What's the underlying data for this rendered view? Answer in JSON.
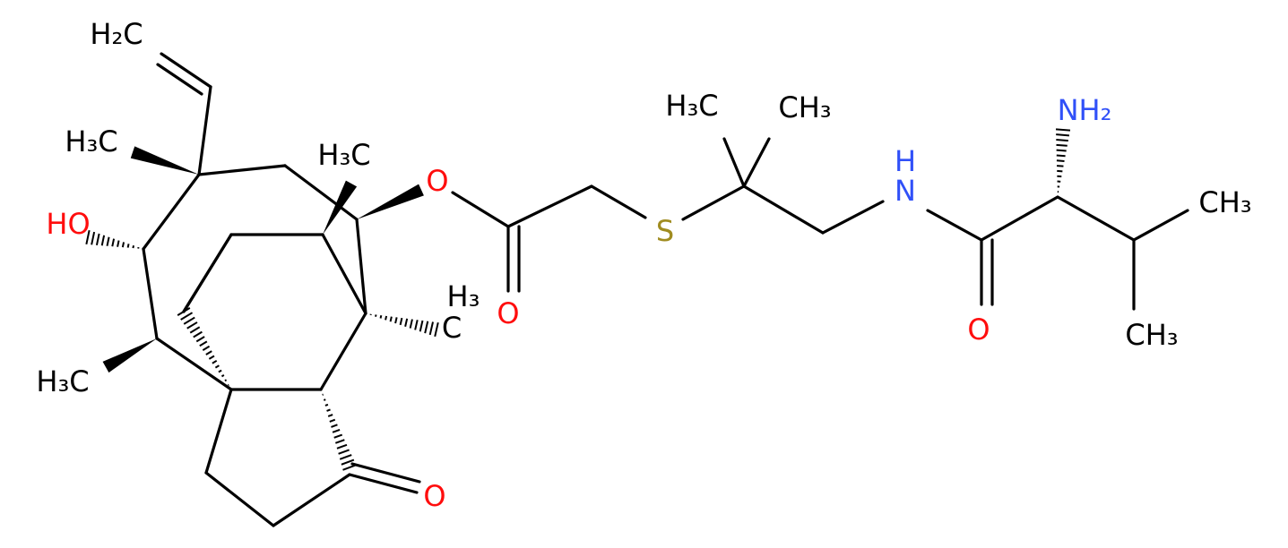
{
  "atoms": [
    "H₂C",
    "H₃C",
    "HO",
    "H₃C",
    "H₃",
    "C",
    "H₃C",
    "O",
    "O",
    "O",
    "S",
    "H₃C",
    "CH₃",
    "H",
    "N",
    "O",
    "NH₂",
    "CH₃",
    "CH₃"
  ]
}
